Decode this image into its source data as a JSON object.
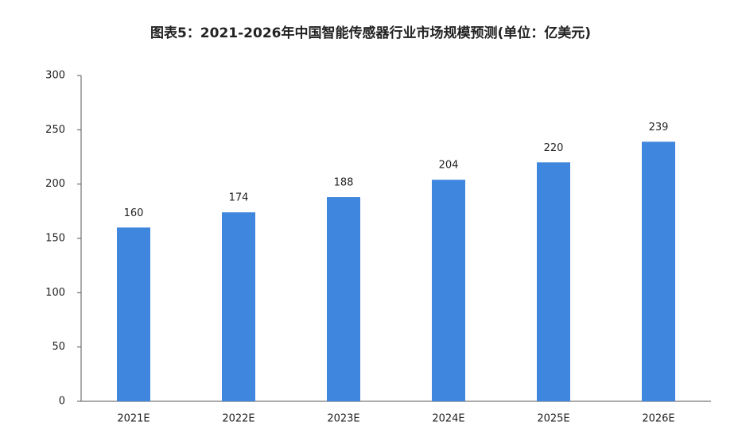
{
  "chart_data": {
    "type": "bar",
    "title": "图表5：2021-2026年中国智能传感器行业市场规模预测(单位：亿美元)",
    "categories": [
      "2021E",
      "2022E",
      "2023E",
      "2024E",
      "2025E",
      "2026E"
    ],
    "values": [
      160,
      174,
      188,
      204,
      220,
      239
    ],
    "color": "#3f86de",
    "ylim": [
      0,
      300
    ],
    "yticks": [
      0,
      50,
      100,
      150,
      200,
      250,
      300
    ],
    "grid": false
  }
}
